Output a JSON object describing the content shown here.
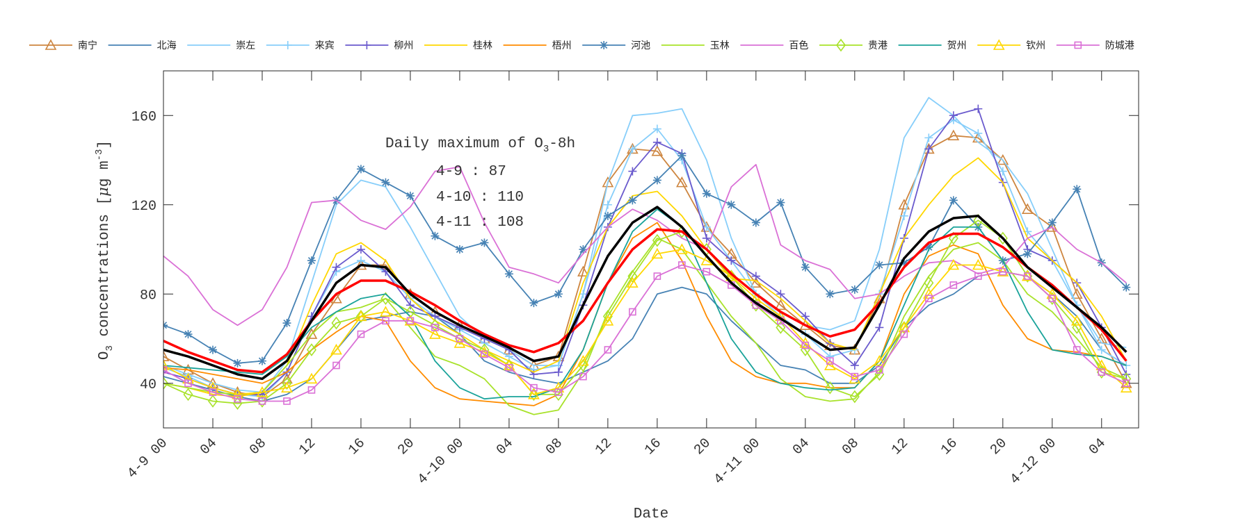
{
  "chart_data": {
    "type": "line",
    "xlabel": "Date",
    "ylabel": "O3 concentrations [μg m-3]",
    "ylabel_parts": {
      "main": "O",
      "sub": "3",
      "rest": " concentrations [",
      "mu": "μ",
      "g": "g m",
      "sup": "-3",
      "end": "]"
    },
    "xlim_hours": [
      0,
      79
    ],
    "ylim": [
      20,
      180
    ],
    "yticks": [
      40,
      80,
      120,
      160
    ],
    "xticks": [
      {
        "h": 0,
        "label": "4-9 00"
      },
      {
        "h": 4,
        "label": "04"
      },
      {
        "h": 8,
        "label": "08"
      },
      {
        "h": 12,
        "label": "12"
      },
      {
        "h": 16,
        "label": "16"
      },
      {
        "h": 20,
        "label": "20"
      },
      {
        "h": 24,
        "label": "4-10 00"
      },
      {
        "h": 28,
        "label": "04"
      },
      {
        "h": 32,
        "label": "08"
      },
      {
        "h": 36,
        "label": "12"
      },
      {
        "h": 40,
        "label": "16"
      },
      {
        "h": 44,
        "label": "20"
      },
      {
        "h": 48,
        "label": "4-11 00"
      },
      {
        "h": 52,
        "label": "04"
      },
      {
        "h": 56,
        "label": "08"
      },
      {
        "h": 60,
        "label": "12"
      },
      {
        "h": 64,
        "label": "16"
      },
      {
        "h": 68,
        "label": "20"
      },
      {
        "h": 72,
        "label": "4-12 00"
      },
      {
        "h": 76,
        "label": "04"
      }
    ],
    "grid": false,
    "legend_placement": "top, outside, single row",
    "annotation": {
      "title": "Daily maximum of O",
      "title_sub": "3",
      "title_end": "-8h",
      "lines": [
        "4-9 : 87",
        "4-10 : 110",
        "4-11 : 108"
      ]
    },
    "x_hours": [
      0,
      2,
      4,
      6,
      8,
      10,
      12,
      14,
      16,
      18,
      20,
      22,
      24,
      26,
      28,
      30,
      32,
      34,
      36,
      38,
      40,
      42,
      44,
      46,
      48,
      50,
      52,
      54,
      56,
      58,
      60,
      62,
      64,
      66,
      68,
      70,
      72,
      74,
      76,
      78
    ],
    "series": [
      {
        "name": "南宁",
        "color": "#CD853F",
        "marker": "triangle",
        "values": [
          52,
          46,
          40,
          36,
          34,
          42,
          62,
          78,
          93,
          93,
          80,
          72,
          66,
          60,
          55,
          48,
          52,
          90,
          130,
          145,
          144,
          130,
          110,
          98,
          85,
          75,
          66,
          57,
          55,
          78,
          120,
          145,
          151,
          150,
          140,
          118,
          110,
          80,
          60,
          40
        ]
      },
      {
        "name": "北海",
        "color": "#4682B4",
        "marker": "none",
        "values": [
          43,
          40,
          37,
          34,
          32,
          35,
          42,
          55,
          68,
          70,
          72,
          70,
          62,
          50,
          45,
          42,
          40,
          45,
          50,
          60,
          80,
          83,
          80,
          68,
          58,
          48,
          46,
          40,
          40,
          48,
          65,
          75,
          80,
          88,
          90,
          88,
          80,
          70,
          55,
          48
        ]
      },
      {
        "name": "崇左",
        "color": "#87CEFA",
        "marker": "none",
        "values": [
          48,
          44,
          40,
          37,
          36,
          50,
          85,
          120,
          131,
          128,
          110,
          90,
          70,
          60,
          55,
          48,
          48,
          80,
          130,
          160,
          161,
          163,
          140,
          105,
          80,
          72,
          66,
          64,
          68,
          100,
          150,
          168,
          160,
          148,
          140,
          125,
          100,
          75,
          58,
          56
        ]
      },
      {
        "name": "来宾",
        "color": "#87CEFA",
        "marker": "plus",
        "values": [
          47,
          43,
          38,
          35,
          34,
          45,
          70,
          90,
          95,
          90,
          78,
          70,
          64,
          58,
          52,
          46,
          48,
          80,
          120,
          145,
          154,
          140,
          110,
          95,
          80,
          70,
          62,
          52,
          55,
          80,
          115,
          150,
          158,
          152,
          135,
          108,
          95,
          75,
          55,
          48
        ]
      },
      {
        "name": "柳州",
        "color": "#6A5ACD",
        "marker": "plus",
        "values": [
          45,
          42,
          38,
          35,
          35,
          45,
          70,
          92,
          100,
          90,
          75,
          70,
          65,
          60,
          55,
          44,
          45,
          75,
          110,
          135,
          148,
          143,
          105,
          95,
          88,
          80,
          70,
          58,
          48,
          65,
          105,
          145,
          160,
          163,
          130,
          100,
          95,
          85,
          65,
          44
        ]
      },
      {
        "name": "桂林",
        "color": "#FFD700",
        "marker": "none",
        "values": [
          40,
          38,
          35,
          34,
          36,
          48,
          75,
          98,
          103,
          95,
          78,
          68,
          62,
          55,
          50,
          45,
          50,
          85,
          110,
          124,
          126,
          115,
          100,
          87,
          86,
          78,
          68,
          58,
          55,
          80,
          105,
          120,
          133,
          141,
          130,
          105,
          95,
          85,
          70,
          50
        ]
      },
      {
        "name": "梧州",
        "color": "#FF8C00",
        "marker": "none",
        "values": [
          47,
          46,
          44,
          42,
          40,
          45,
          55,
          63,
          70,
          68,
          50,
          38,
          33,
          32,
          31,
          30,
          35,
          55,
          85,
          105,
          112,
          95,
          70,
          50,
          43,
          40,
          40,
          38,
          38,
          50,
          80,
          97,
          102,
          98,
          75,
          60,
          55,
          54,
          52,
          48
        ]
      },
      {
        "name": "河池",
        "color": "#4682B4",
        "marker": "asterisk",
        "values": [
          66,
          62,
          55,
          49,
          50,
          67,
          95,
          122,
          136,
          130,
          124,
          106,
          100,
          103,
          89,
          76,
          80,
          100,
          115,
          122,
          131,
          142,
          125,
          120,
          112,
          121,
          92,
          80,
          82,
          93,
          94,
          101,
          122,
          110,
          95,
          98,
          112,
          127,
          94,
          83
        ]
      },
      {
        "name": "玉林",
        "color": "#A8E22A",
        "marker": "none",
        "values": [
          40,
          38,
          36,
          35,
          36,
          48,
          62,
          72,
          74,
          78,
          65,
          52,
          48,
          42,
          30,
          26,
          28,
          45,
          72,
          90,
          105,
          100,
          85,
          70,
          58,
          42,
          34,
          32,
          33,
          45,
          70,
          88,
          100,
          103,
          95,
          80,
          72,
          60,
          47,
          42
        ]
      },
      {
        "name": "百色",
        "color": "#DA70D6",
        "marker": "none",
        "values": [
          97,
          88,
          73,
          66,
          73,
          92,
          121,
          122,
          113,
          109,
          119,
          135,
          137,
          112,
          92,
          89,
          85,
          98,
          110,
          118,
          113,
          105,
          100,
          128,
          138,
          102,
          95,
          91,
          78,
          80,
          88,
          94,
          95,
          89,
          92,
          105,
          110,
          100,
          94,
          85
        ]
      },
      {
        "name": "贵港",
        "color": "#A8E22A",
        "marker": "diamond",
        "values": [
          40,
          35,
          32,
          31,
          32,
          40,
          55,
          67,
          70,
          78,
          72,
          66,
          60,
          55,
          48,
          35,
          35,
          48,
          70,
          88,
          104,
          108,
          100,
          88,
          75,
          65,
          55,
          38,
          34,
          44,
          65,
          85,
          105,
          113,
          105,
          88,
          78,
          65,
          45,
          42
        ]
      },
      {
        "name": "贺州",
        "color": "#1AA39A",
        "marker": "none",
        "values": [
          48,
          47,
          46,
          45,
          44,
          52,
          65,
          72,
          78,
          80,
          70,
          50,
          38,
          33,
          34,
          34,
          38,
          55,
          85,
          108,
          118,
          110,
          85,
          60,
          45,
          40,
          38,
          37,
          38,
          50,
          75,
          100,
          110,
          110,
          95,
          72,
          55,
          53,
          52,
          48
        ]
      },
      {
        "name": "钦州",
        "color": "#FFD700",
        "marker": "triangle",
        "values": [
          48,
          42,
          38,
          35,
          36,
          38,
          42,
          55,
          70,
          72,
          68,
          62,
          58,
          54,
          48,
          35,
          38,
          50,
          68,
          85,
          98,
          100,
          95,
          88,
          78,
          70,
          58,
          48,
          42,
          50,
          65,
          80,
          93,
          93,
          90,
          88,
          80,
          68,
          48,
          38
        ]
      },
      {
        "name": "防城港",
        "color": "#DA70D6",
        "marker": "square",
        "values": [
          46,
          40,
          36,
          33,
          32,
          32,
          37,
          48,
          62,
          68,
          68,
          65,
          60,
          53,
          47,
          38,
          36,
          43,
          55,
          72,
          88,
          93,
          90,
          84,
          75,
          68,
          57,
          50,
          43,
          46,
          62,
          78,
          84,
          88,
          90,
          88,
          78,
          55,
          45,
          40
        ]
      },
      {
        "color": "#FF0000",
        "marker": "none",
        "width": 3.5,
        "values": [
          59,
          54,
          50,
          46,
          45,
          53,
          68,
          80,
          86,
          86,
          81,
          75,
          68,
          62,
          57,
          54,
          58,
          68,
          85,
          100,
          109,
          108,
          100,
          89,
          80,
          72,
          66,
          61,
          64,
          76,
          92,
          103,
          107,
          107,
          101,
          92,
          84,
          74,
          64,
          50
        ]
      },
      {
        "color": "#000000",
        "marker": "none",
        "width": 3.5,
        "values": [
          55,
          52,
          48,
          44,
          42,
          50,
          68,
          85,
          93,
          92,
          80,
          72,
          66,
          61,
          56,
          50,
          52,
          75,
          97,
          112,
          119,
          110,
          97,
          85,
          76,
          69,
          62,
          55,
          56,
          75,
          96,
          108,
          114,
          115,
          105,
          92,
          83,
          74,
          65,
          54
        ]
      }
    ]
  }
}
